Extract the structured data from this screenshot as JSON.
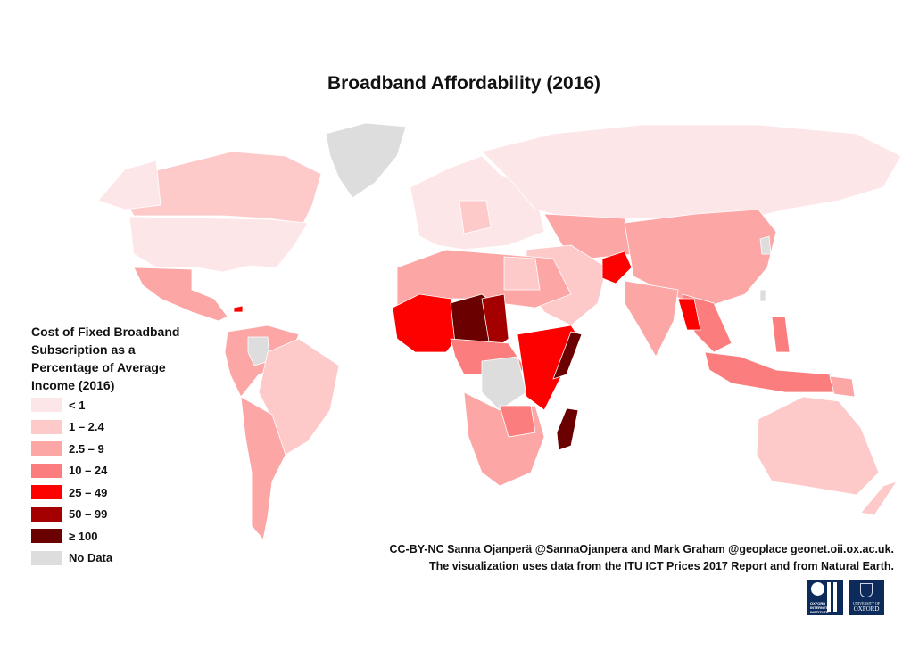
{
  "title": "Broadband Affordability (2016)",
  "legend": {
    "title": "Cost of Fixed Broadband Subscription as a Percentage of Average Income (2016)",
    "items": [
      {
        "label": "< 1",
        "color": "#fde6e7"
      },
      {
        "label": "1 – 2.4",
        "color": "#fdc9c9"
      },
      {
        "label": "2.5 – 9",
        "color": "#fca6a6"
      },
      {
        "label": "10 – 24",
        "color": "#fb7d7d"
      },
      {
        "label": "25 – 49",
        "color": "#fd0000"
      },
      {
        "label": "50 – 99",
        "color": "#a50000"
      },
      {
        "label": "≥ 100",
        "color": "#6b0000"
      },
      {
        "label": "No Data",
        "color": "#dddddd"
      }
    ]
  },
  "credits": {
    "line1": "CC-BY-NC Sanna Ojanperä @SannaOjanpera and Mark Graham @geoplace geonet.oii.ox.ac.uk.",
    "line2": "The visualization uses data from the ITU ICT Prices 2017 Report and from Natural Earth."
  },
  "logos": {
    "oii": "OII OXFORD INTERNET INSTITUTE",
    "oxford": "UNIVERSITY OF OXFORD"
  }
}
